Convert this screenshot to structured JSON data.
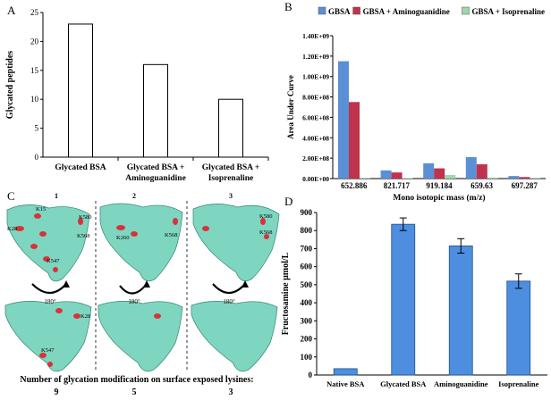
{
  "panels": {
    "a": "A",
    "b": "B",
    "c": "C",
    "d": "D"
  },
  "chart_data": [
    {
      "id": "A",
      "type": "bar",
      "ylabel": "Glycated peptides",
      "ylim": [
        0,
        25
      ],
      "yticks": [
        0,
        5,
        10,
        15,
        20,
        25
      ],
      "categories": [
        [
          "Glycated BSA"
        ],
        [
          "Glycated BSA +",
          "Aminoguanidine"
        ],
        [
          "Glycated BSA +",
          "Isoprenaline"
        ]
      ],
      "values": [
        23,
        16,
        10
      ],
      "colors": {
        "fill": "#ffffff",
        "stroke": "#000000"
      }
    },
    {
      "id": "B",
      "type": "bar",
      "xlabel": "Mono isotopic mass (m/z)",
      "ylabel": "Area Under Curve",
      "ylim": [
        0,
        1400000000
      ],
      "yticks": [
        "0.00E+00",
        "2.00E+08",
        "4.00E+08",
        "6.00E+08",
        "8.00E+08",
        "1.00E+09",
        "1.20E+09",
        "1.40E+09"
      ],
      "categories": [
        "652.886",
        "821.717",
        "919.184",
        "659.63",
        "697.287"
      ],
      "legend_position": "top",
      "series": [
        {
          "name": "GBSA",
          "color": "#5b8fd6",
          "values": [
            1150000000,
            80000000,
            150000000,
            210000000,
            25000000
          ]
        },
        {
          "name": "GBSA + Aminoguanidine",
          "color": "#c0334d",
          "values": [
            750000000,
            60000000,
            100000000,
            140000000,
            15000000
          ]
        },
        {
          "name": "GBSA + Isoprenaline",
          "color": "#9fd8a8",
          "values": [
            3000000,
            5000000,
            35000000,
            10000000,
            3000000
          ]
        }
      ]
    },
    {
      "id": "D",
      "type": "bar",
      "ylabel": "Fructosamine μmol/L",
      "ylim": [
        0,
        900
      ],
      "yticks": [
        0,
        100,
        200,
        300,
        400,
        500,
        600,
        700,
        800,
        900
      ],
      "categories": [
        "Native BSA",
        "Glycated BSA",
        "Aminoguanidine",
        "Isoprenaline"
      ],
      "values": [
        35,
        835,
        715,
        520
      ],
      "errors": [
        0,
        35,
        40,
        40
      ],
      "colors": {
        "fill": "#4d8ee0",
        "stroke": "#1f4f8f"
      }
    }
  ],
  "panel_c": {
    "columns": [
      "1",
      "2",
      "3"
    ],
    "rotation_label": "180°",
    "lysine_labels": [
      "K15",
      "K580",
      "K568",
      "K28",
      "K547",
      "K568",
      "K260",
      "K28",
      "K547",
      "K580",
      "K568"
    ],
    "caption": "Number of glycation modification on surface exposed lysines:",
    "counts": [
      "9",
      "5",
      "3"
    ],
    "colors": {
      "protein": "#7fd6c0",
      "protein_dark": "#3f8f7c",
      "lysine": "#d9323a"
    }
  }
}
